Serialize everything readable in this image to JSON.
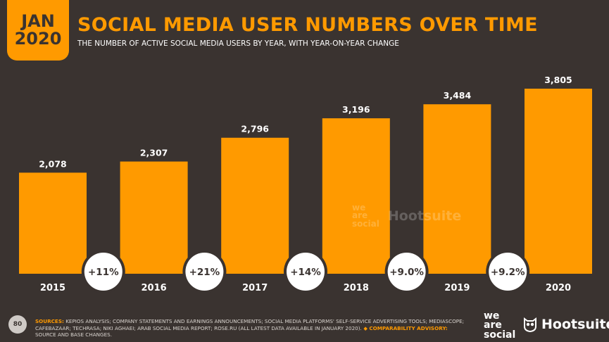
{
  "header": {
    "badge_month": "JAN",
    "badge_year": "2020",
    "title": "SOCIAL MEDIA USER NUMBERS OVER TIME",
    "subtitle": "THE NUMBER OF ACTIVE SOCIAL MEDIA USERS BY YEAR, WITH YEAR-ON-YEAR CHANGE"
  },
  "chart_data": {
    "type": "bar",
    "title": "SOCIAL MEDIA USER NUMBERS OVER TIME",
    "categories": [
      "2015",
      "2016",
      "2017",
      "2018",
      "2019",
      "2020"
    ],
    "values": [
      2078,
      2307,
      2796,
      3196,
      3484,
      3805
    ],
    "value_labels": [
      "2,078",
      "2,307",
      "2,796",
      "3,196",
      "3,484",
      "3,805"
    ],
    "yoy_changes": [
      "+11%",
      "+21%",
      "+14%",
      "+9.0%",
      "+9.2%"
    ],
    "ylim": [
      0,
      3805
    ],
    "grid": false,
    "legend": "none",
    "bar_color": "#ff9a00"
  },
  "watermark": {
    "we_are_social_lines": [
      "we",
      "are",
      "social"
    ],
    "hootsuite": "Hootsuite"
  },
  "footer": {
    "page_number": "80",
    "sources_label": "SOURCES:",
    "sources_text": " KEPIOS ANALYSIS; COMPANY STATEMENTS AND EARNINGS ANNOUNCEMENTS; SOCIAL MEDIA PLATFORMS' SELF-SERVICE ADVERTISING TOOLS; MEDIASCOPE; CAFEBAZAAR; TECHRASA; NIKI AGHAEI; ARAB SOCIAL MEDIA REPORT; ROSE.RU (ALL LATEST DATA AVAILABLE IN JANUARY 2020).",
    "advisory_label": " ◆ COMPARABILITY ADVISORY:",
    "advisory_text": " SOURCE AND BASE CHANGES."
  },
  "brands": {
    "we_are_social_lines": [
      "we",
      "are",
      "social"
    ],
    "hootsuite": "Hootsuite",
    "hootsuite_icon": "owl-icon"
  },
  "colors": {
    "background": "#3a3330",
    "accent": "#ff9a00",
    "text": "#ffffff"
  }
}
